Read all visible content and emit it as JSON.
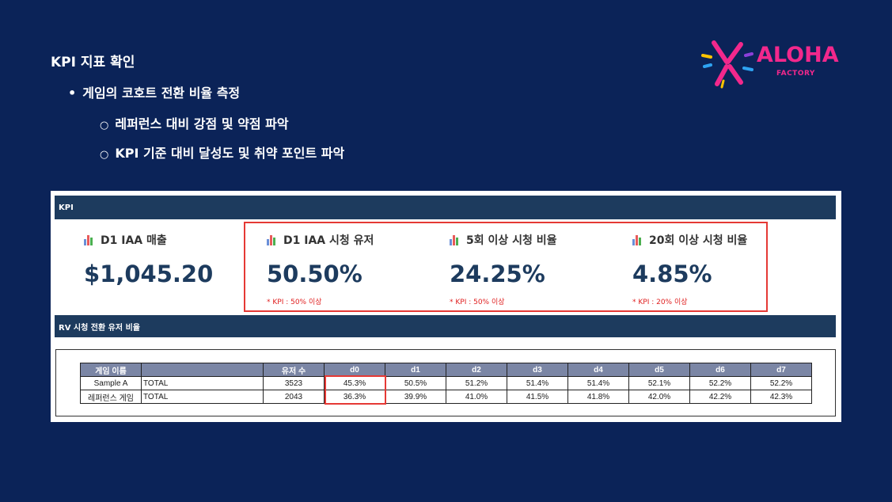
{
  "slide": {
    "title": "KPI 지표 확인",
    "bullet_1": "게임의 코호트 전환 비율 측정",
    "bullet_2": "레퍼런스 대비 강점 및 약점 파악",
    "bullet_3": "KPI 기준 대비 달성도 및 취약 포인트 파악"
  },
  "logo": {
    "word": "ALOHA",
    "sub": "FACTORY"
  },
  "dashboard": {
    "kpi_bar": "KPI",
    "rv_bar": "RV 시청 전환 유저 비율",
    "cards": [
      {
        "label": "D1 IAA 매출",
        "value": "$1,045.20",
        "note": ""
      },
      {
        "label": "D1 IAA 시청 유저",
        "value": "50.50%",
        "note": "* KPI : 50% 이상"
      },
      {
        "label": "5회 이상 시청 비율",
        "value": "24.25%",
        "note": "* KPI : 50% 이상"
      },
      {
        "label": "20회 이상 시청 비율",
        "value": "4.85%",
        "note": "* KPI : 20% 이상"
      }
    ],
    "table": {
      "headers": [
        "게임 이름",
        "",
        "유저 수",
        "d0",
        "d1",
        "d2",
        "d3",
        "d4",
        "d5",
        "d6",
        "d7"
      ],
      "rows": [
        [
          "Sample A",
          "TOTAL",
          "3523",
          "45.3%",
          "50.5%",
          "51.2%",
          "51.4%",
          "51.4%",
          "52.1%",
          "52.2%",
          "52.2%"
        ],
        [
          "레퍼런스 게임",
          "TOTAL",
          "2043",
          "36.3%",
          "39.9%",
          "41.0%",
          "41.5%",
          "41.8%",
          "42.0%",
          "42.2%",
          "42.3%"
        ]
      ]
    }
  },
  "colors": {
    "background": "#0b2358",
    "header_bar": "#1d3b5e",
    "accent_red": "#e53935",
    "logo_pink": "#f2288c"
  },
  "icons": [
    "bar-chart-icon"
  ]
}
